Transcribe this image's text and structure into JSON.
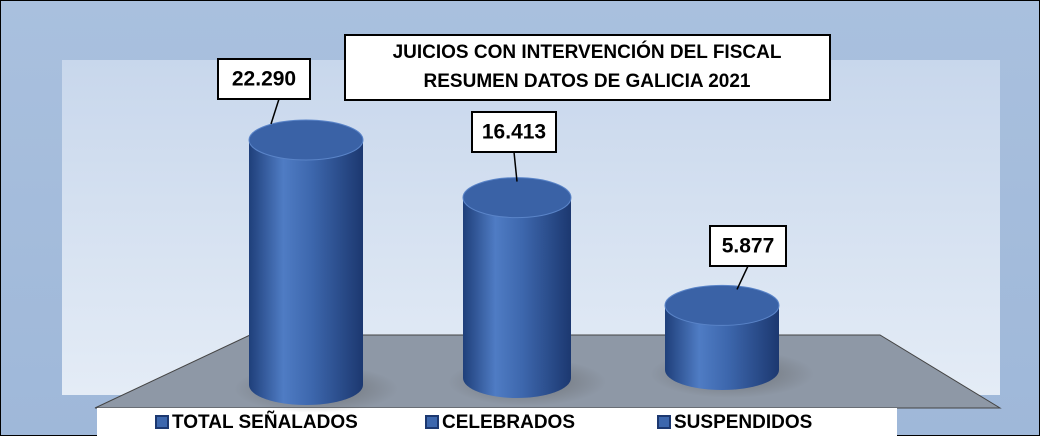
{
  "chart_data": {
    "type": "bar",
    "title": [
      "JUICIOS CON INTERVENCIÓN DEL FISCAL",
      "RESUMEN DATOS DE  GALICIA 2021"
    ],
    "categories": [
      "TOTAL SEÑALADOS",
      "CELEBRADOS",
      "SUSPENDIDOS"
    ],
    "values": [
      22290,
      16413,
      5877
    ],
    "value_labels": [
      "22.290",
      "16.413",
      "5.877"
    ],
    "color": "#3d67ad",
    "legend": "bottom"
  }
}
